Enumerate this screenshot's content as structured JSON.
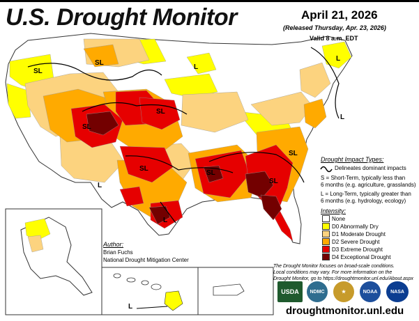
{
  "header": {
    "title": "U.S. Drought Monitor",
    "date": "April 21, 2026",
    "released": "(Released Thursday, Apr. 23, 2026)",
    "valid": "Valid 8 a.m. EDT"
  },
  "impact": {
    "heading": "Drought Impact Types:",
    "line_desc": "Delineates dominant impacts",
    "s_line1": "S = Short-Term, typically less than",
    "s_line2": "6 months (e.g. agriculture, grasslands)",
    "l_line1": "L = Long-Term, typically greater than",
    "l_line2": "6 months (e.g. hydrology, ecology)"
  },
  "intensity": {
    "heading": "Intensity:",
    "items": [
      {
        "label": "None",
        "color": "#ffffff"
      },
      {
        "label": "D0 Abnormally Dry",
        "color": "#ffff00"
      },
      {
        "label": "D1 Moderate Drought",
        "color": "#fcd37f"
      },
      {
        "label": "D2 Severe Drought",
        "color": "#ffaa00"
      },
      {
        "label": "D3 Extreme Drought",
        "color": "#e60000"
      },
      {
        "label": "D4 Exceptional Drought",
        "color": "#730000"
      }
    ]
  },
  "map_labels": {
    "sl": "SL",
    "l": "L"
  },
  "author": {
    "heading": "Author:",
    "name": "Brian Fuchs",
    "org": "National Drought Mitigation Center"
  },
  "footnote": {
    "line1": "The Drought Monitor focuses on broad-scale conditions.",
    "line2": "Local conditions may vary. For more information on the",
    "line3": "Drought Monitor, go to https://droughtmonitor.unl.edu/About.aspx"
  },
  "logos": {
    "usda": "USDA",
    "ndmc": "NDMC",
    "noaa": "NOAA",
    "nasa": "NASA"
  },
  "url": "droughtmonitor.unl.edu"
}
